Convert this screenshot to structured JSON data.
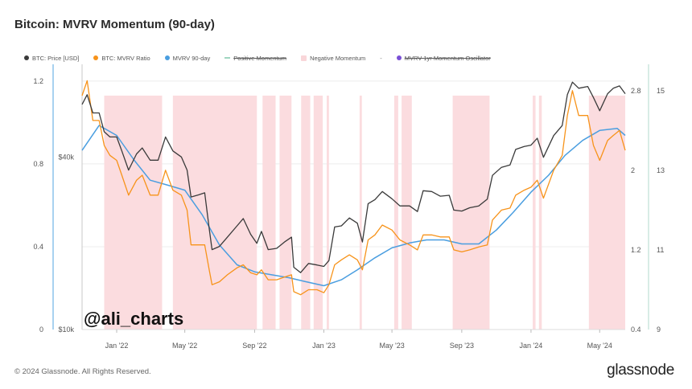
{
  "title": "Bitcoin: MVRV Momentum (90-day)",
  "legend": [
    {
      "label": "BTC: Price [USD]",
      "color": "#3a3a3a",
      "shape": "dot",
      "strike": false
    },
    {
      "label": "BTC: MVRV Ratio",
      "color": "#f7931a",
      "shape": "dot",
      "strike": false
    },
    {
      "label": "MVRV 90-day",
      "color": "#4a9ee0",
      "shape": "dot",
      "strike": false
    },
    {
      "label": "Positive Momentum",
      "color": "#9fd6c0",
      "shape": "line",
      "strike": true
    },
    {
      "label": "Negative Momentum",
      "color": "#f9d6d9",
      "shape": "square",
      "strike": false
    },
    {
      "label": "-",
      "color": "",
      "shape": "text",
      "strike": false
    },
    {
      "label": "MVRV 1yr Momentum Oscillator",
      "color": "#7a4fd6",
      "shape": "dot",
      "strike": true
    }
  ],
  "watermark": "@ali_charts",
  "footer": "© 2024 Glassnode. All Rights Reserved.",
  "brand": "glassnode",
  "colors": {
    "price": "#3a3a3a",
    "mvrv": "#f7931a",
    "mvrv90": "#4a9ee0",
    "negative": "#fbdcdf",
    "left_axis_line": "#6fb3e6",
    "right_axis_line": "#bfe0d6"
  },
  "chart_data": {
    "type": "line",
    "x_tick_labels": [
      "Jan '22",
      "May '22",
      "Sep '22",
      "Jan '23",
      "May '23",
      "Sep '23",
      "Jan '24",
      "May '24"
    ],
    "x_tick_dates": [
      "2022-01-01",
      "2022-05-01",
      "2022-09-01",
      "2023-01-01",
      "2023-05-01",
      "2023-09-01",
      "2024-01-01",
      "2024-05-01"
    ],
    "xlim": [
      "2021-11-01",
      "2024-06-15"
    ],
    "axes": {
      "momentum": {
        "ticks": [
          0,
          0.4,
          0.8,
          1.2
        ],
        "tick_labels": [
          "0",
          "0.4",
          "0.8",
          "1.2"
        ],
        "range": [
          0,
          1.25
        ]
      },
      "price": {
        "scale": "log",
        "ticks": [
          10000,
          40000
        ],
        "tick_labels": [
          "$10k",
          "$40k"
        ],
        "range": [
          10000,
          80000
        ]
      },
      "mvrv": {
        "ticks": [
          0.4,
          1.2,
          2,
          2.8
        ],
        "tick_labels": [
          "0.4",
          "1.2",
          "2",
          "2.8"
        ],
        "range": [
          0.4,
          3.0
        ]
      },
      "right_outer": {
        "ticks": [
          9,
          11,
          13,
          15
        ],
        "tick_labels": [
          "9",
          "11",
          "13",
          "15"
        ],
        "range": [
          9,
          15.5
        ]
      }
    },
    "series": [
      {
        "name": "BTC: Price [USD]",
        "axis": "price",
        "x": [
          "2021-11-01",
          "2021-11-10",
          "2021-11-20",
          "2021-12-01",
          "2021-12-10",
          "2021-12-20",
          "2022-01-01",
          "2022-01-10",
          "2022-01-22",
          "2022-02-05",
          "2022-02-15",
          "2022-03-01",
          "2022-03-15",
          "2022-03-28",
          "2022-04-10",
          "2022-04-25",
          "2022-05-05",
          "2022-05-12",
          "2022-05-25",
          "2022-06-05",
          "2022-06-13",
          "2022-06-18",
          "2022-07-01",
          "2022-07-15",
          "2022-08-01",
          "2022-08-12",
          "2022-08-25",
          "2022-09-05",
          "2022-09-13",
          "2022-09-25",
          "2022-10-10",
          "2022-10-25",
          "2022-11-05",
          "2022-11-09",
          "2022-11-21",
          "2022-12-05",
          "2022-12-20",
          "2023-01-01",
          "2023-01-10",
          "2023-01-20",
          "2023-02-01",
          "2023-02-15",
          "2023-03-01",
          "2023-03-10",
          "2023-03-20",
          "2023-04-01",
          "2023-04-14",
          "2023-05-01",
          "2023-05-15",
          "2023-06-01",
          "2023-06-15",
          "2023-06-25",
          "2023-07-10",
          "2023-07-25",
          "2023-08-10",
          "2023-08-18",
          "2023-09-01",
          "2023-09-15",
          "2023-10-01",
          "2023-10-16",
          "2023-10-25",
          "2023-11-10",
          "2023-11-25",
          "2023-12-05",
          "2023-12-20",
          "2024-01-01",
          "2024-01-12",
          "2024-01-23",
          "2024-02-10",
          "2024-02-25",
          "2024-03-05",
          "2024-03-14",
          "2024-03-25",
          "2024-04-10",
          "2024-04-20",
          "2024-05-01",
          "2024-05-15",
          "2024-05-25",
          "2024-06-05",
          "2024-06-15"
        ],
        "y": [
          61000,
          66000,
          57000,
          57000,
          49000,
          47000,
          47000,
          42000,
          36000,
          41000,
          43000,
          39000,
          39000,
          47000,
          42000,
          40000,
          36000,
          29000,
          29500,
          30000,
          22500,
          19000,
          19500,
          21000,
          23000,
          24400,
          21500,
          20000,
          22000,
          19000,
          19200,
          20300,
          21000,
          16500,
          15800,
          17000,
          16800,
          16600,
          17400,
          22800,
          23000,
          24500,
          23500,
          20200,
          27500,
          28400,
          30300,
          28600,
          27000,
          27000,
          25800,
          30500,
          30300,
          29200,
          29400,
          26100,
          25900,
          26600,
          27000,
          28500,
          34500,
          36800,
          37500,
          42500,
          43500,
          44000,
          46500,
          39900,
          47500,
          51500,
          66000,
          73000,
          69500,
          70500,
          64500,
          58000,
          66500,
          69500,
          70800,
          66500
        ]
      },
      {
        "name": "BTC: MVRV Ratio",
        "axis": "mvrv",
        "x": [
          "2021-11-01",
          "2021-11-10",
          "2021-11-20",
          "2021-12-01",
          "2021-12-10",
          "2021-12-20",
          "2022-01-01",
          "2022-01-10",
          "2022-01-22",
          "2022-02-05",
          "2022-02-15",
          "2022-03-01",
          "2022-03-15",
          "2022-03-28",
          "2022-04-10",
          "2022-04-25",
          "2022-05-05",
          "2022-05-12",
          "2022-05-25",
          "2022-06-05",
          "2022-06-13",
          "2022-06-18",
          "2022-07-01",
          "2022-07-15",
          "2022-08-01",
          "2022-08-12",
          "2022-08-25",
          "2022-09-05",
          "2022-09-13",
          "2022-09-25",
          "2022-10-10",
          "2022-10-25",
          "2022-11-05",
          "2022-11-09",
          "2022-11-21",
          "2022-12-05",
          "2022-12-20",
          "2023-01-01",
          "2023-01-10",
          "2023-01-20",
          "2023-02-01",
          "2023-02-15",
          "2023-03-01",
          "2023-03-10",
          "2023-03-20",
          "2023-04-01",
          "2023-04-14",
          "2023-05-01",
          "2023-05-15",
          "2023-06-01",
          "2023-06-15",
          "2023-06-25",
          "2023-07-10",
          "2023-07-25",
          "2023-08-10",
          "2023-08-18",
          "2023-09-01",
          "2023-09-15",
          "2023-10-01",
          "2023-10-16",
          "2023-10-25",
          "2023-11-10",
          "2023-11-25",
          "2023-12-05",
          "2023-12-20",
          "2024-01-01",
          "2024-01-12",
          "2024-01-23",
          "2024-02-10",
          "2024-02-25",
          "2024-03-05",
          "2024-03-14",
          "2024-03-25",
          "2024-04-10",
          "2024-04-20",
          "2024-05-01",
          "2024-05-15",
          "2024-05-25",
          "2024-06-05",
          "2024-06-15"
        ],
        "y": [
          2.75,
          2.9,
          2.5,
          2.5,
          2.25,
          2.15,
          2.1,
          1.95,
          1.75,
          1.9,
          1.95,
          1.75,
          1.75,
          2.0,
          1.8,
          1.75,
          1.6,
          1.25,
          1.25,
          1.25,
          1.0,
          0.85,
          0.88,
          0.95,
          1.02,
          1.05,
          0.97,
          0.95,
          1.0,
          0.9,
          0.9,
          0.93,
          0.95,
          0.78,
          0.75,
          0.8,
          0.8,
          0.77,
          0.85,
          1.05,
          1.1,
          1.15,
          1.1,
          1.0,
          1.3,
          1.35,
          1.45,
          1.4,
          1.3,
          1.25,
          1.2,
          1.35,
          1.35,
          1.33,
          1.33,
          1.2,
          1.18,
          1.2,
          1.23,
          1.25,
          1.5,
          1.6,
          1.62,
          1.75,
          1.8,
          1.83,
          1.9,
          1.72,
          2.0,
          2.15,
          2.55,
          2.8,
          2.55,
          2.55,
          2.25,
          2.1,
          2.3,
          2.35,
          2.4,
          2.2
        ]
      },
      {
        "name": "MVRV 90-day",
        "axis": "mvrv",
        "x": [
          "2021-11-01",
          "2021-12-01",
          "2022-01-01",
          "2022-02-01",
          "2022-03-01",
          "2022-04-01",
          "2022-05-01",
          "2022-06-01",
          "2022-07-01",
          "2022-08-01",
          "2022-09-01",
          "2022-10-01",
          "2022-11-01",
          "2022-12-01",
          "2023-01-01",
          "2023-02-01",
          "2023-03-01",
          "2023-04-01",
          "2023-05-01",
          "2023-06-01",
          "2023-07-01",
          "2023-08-01",
          "2023-09-01",
          "2023-10-01",
          "2023-11-01",
          "2023-12-01",
          "2024-01-01",
          "2024-02-01",
          "2024-03-01",
          "2024-04-01",
          "2024-05-01",
          "2024-06-01",
          "2024-06-15"
        ],
        "y": [
          2.2,
          2.45,
          2.35,
          2.1,
          1.9,
          1.85,
          1.8,
          1.55,
          1.25,
          1.05,
          0.98,
          0.95,
          0.92,
          0.88,
          0.84,
          0.9,
          1.0,
          1.12,
          1.22,
          1.27,
          1.3,
          1.3,
          1.26,
          1.26,
          1.4,
          1.58,
          1.78,
          1.95,
          2.15,
          2.3,
          2.4,
          2.42,
          2.35
        ]
      }
    ],
    "negative_momentum_periods": [
      [
        "2021-12-10",
        "2022-03-22"
      ],
      [
        "2022-04-10",
        "2022-09-05"
      ],
      [
        "2022-09-15",
        "2022-10-08"
      ],
      [
        "2022-10-15",
        "2022-11-05"
      ],
      [
        "2022-11-22",
        "2022-12-08"
      ],
      [
        "2022-12-14",
        "2022-12-30"
      ],
      [
        "2023-01-06",
        "2023-01-10"
      ],
      [
        "2023-03-05",
        "2023-03-09"
      ],
      [
        "2023-05-05",
        "2023-05-12"
      ],
      [
        "2023-05-18",
        "2023-06-05"
      ],
      [
        "2023-08-16",
        "2023-10-20"
      ],
      [
        "2024-01-04",
        "2024-01-09"
      ],
      [
        "2024-01-15",
        "2024-01-20"
      ],
      [
        "2024-04-12",
        "2024-06-15"
      ]
    ]
  }
}
